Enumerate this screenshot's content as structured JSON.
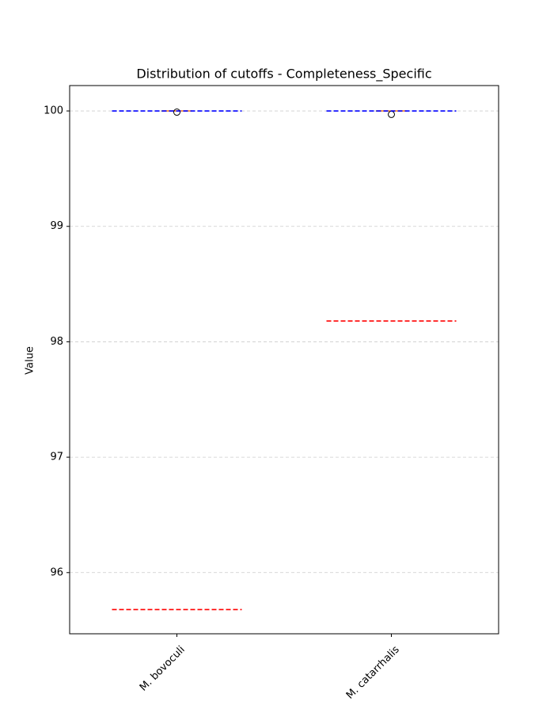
{
  "chart_data": {
    "type": "box",
    "title": "Distribution of cutoffs - Completeness_Specific",
    "y_label": "Value",
    "categories": [
      "M. bovoculi",
      "M. catarrhalis"
    ],
    "boxes": [
      {
        "whislo": 100,
        "q1": 100,
        "med": 100,
        "q3": 100,
        "whishi": 100,
        "fliers": [
          99.99
        ]
      },
      {
        "whislo": 100,
        "q1": 100,
        "med": 100,
        "q3": 100,
        "whishi": 100,
        "fliers": [
          99.97
        ]
      }
    ],
    "box_color": "#000000",
    "median_color": "#ff7f0e",
    "cutoff_lines": [
      {
        "color": "#0000ff",
        "values": [
          100,
          100
        ]
      },
      {
        "color": "#ff0000",
        "values": [
          95.68,
          98.18
        ]
      }
    ],
    "ylim": [
      95.47,
      100.22
    ],
    "yticks": [
      96,
      97,
      98,
      99,
      100
    ],
    "grid": true
  }
}
